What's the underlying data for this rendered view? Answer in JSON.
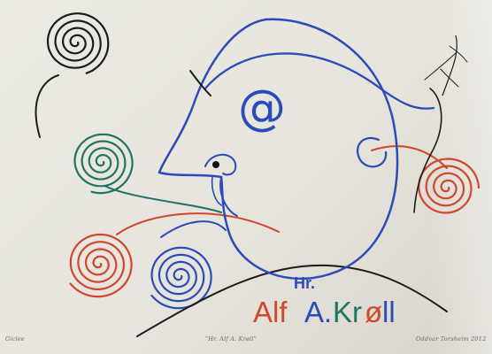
{
  "artwork": {
    "title_line": "Hr.",
    "name_parts": [
      "Alf",
      "A.",
      "Kr",
      "ø",
      "ll"
    ],
    "at_symbol": "@",
    "colors": {
      "blue": "#2b4bb8",
      "red": "#d2462c",
      "green": "#1f7462",
      "black": "#1c1c1c",
      "paper": "#e9e7df"
    }
  },
  "captions": {
    "left": "Giclee",
    "middle": "\"Hr. Alf A. Krøll\"",
    "right": "Oddvar Torsheim 2012"
  }
}
